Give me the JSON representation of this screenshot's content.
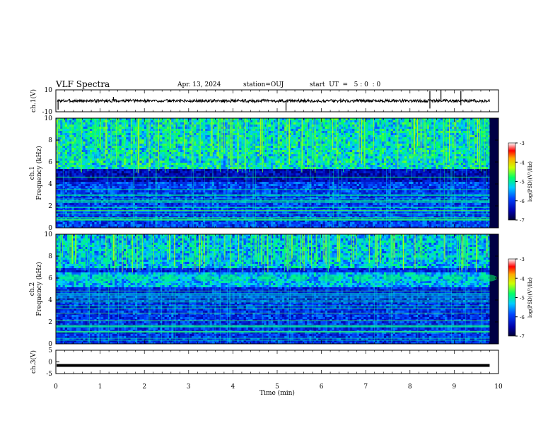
{
  "header": {
    "title": "VLF Spectra",
    "date": "Apr. 13, 2024",
    "station": "station=OUJ",
    "start_ut": "start  UT  =   5 : 0  : 0"
  },
  "colors": {
    "background": "#ffffff",
    "trace": "#000000",
    "colormap": [
      "#000033",
      "#0000aa",
      "#0044ff",
      "#00ccff",
      "#00ff66",
      "#ccff00",
      "#ffaa00",
      "#ff0000",
      "#ffffff"
    ]
  },
  "chart_data": [
    {
      "id": "ch1_waveform",
      "type": "line",
      "ylabel": "ch.1(V)",
      "ylim": [
        -10,
        10
      ],
      "yticks": [
        "10",
        "-10"
      ],
      "x_range_min": [
        0,
        10
      ],
      "baseline": 0,
      "spikes": [
        {
          "x": 0.05,
          "y": -8
        },
        {
          "x": 1.3,
          "y": 3.5
        },
        {
          "x": 5.2,
          "y": -9
        },
        {
          "x": 8.45,
          "y": -7
        },
        {
          "x": 8.45,
          "y": 9
        },
        {
          "x": 8.7,
          "y": 10
        },
        {
          "x": 9.15,
          "y": 9
        },
        {
          "x": 9.15,
          "y": -4
        }
      ],
      "trace_end_min": 9.8
    },
    {
      "id": "ch1_spectrogram",
      "type": "heatmap",
      "ylabel": "ch.1\nFrequency (kHz)",
      "ylabel_line1": "ch.1",
      "ylabel_line2": "Frequency (kHz)",
      "ylim": [
        0,
        10
      ],
      "yticks": [
        "0",
        "2",
        "4",
        "6",
        "8",
        "10"
      ],
      "colorbar_label": "log(PSD)(V²/Hz)",
      "colorbar_ticks": [
        "-3",
        "-4",
        "-5",
        "-6",
        "-7"
      ],
      "colorbar_range": [
        -7,
        -3
      ],
      "quiet_band_khz": [
        4.2,
        5.5
      ],
      "noisy_band_khz": [
        5.5,
        10
      ],
      "seed": 7
    },
    {
      "id": "ch2_spectrogram",
      "type": "heatmap",
      "ylabel": "ch.2\nFrequency (kHz)",
      "ylabel_line1": "ch.2",
      "ylabel_line2": "Frequency (kHz)",
      "ylim": [
        0,
        10
      ],
      "yticks": [
        "0",
        "2",
        "4",
        "6",
        "8",
        "10"
      ],
      "colorbar_label": "log(PSD)(V²/Hz)",
      "colorbar_ticks": [
        "-3",
        "-4",
        "-5",
        "-6",
        "-7"
      ],
      "colorbar_range": [
        -7,
        -3
      ],
      "band_khz": 6.0,
      "seed": 19
    },
    {
      "id": "ch3_waveform",
      "type": "line",
      "ylabel": "ch.3(V)",
      "ylim": [
        -5,
        5
      ],
      "yticks": [
        "5",
        "0",
        "-5"
      ],
      "baseline": -1.5,
      "trace_end_min": 9.8
    }
  ],
  "xaxis": {
    "label": "Time  (min)",
    "ticks": [
      "0",
      "1",
      "2",
      "3",
      "4",
      "5",
      "6",
      "7",
      "8",
      "9",
      "10"
    ],
    "range": [
      0,
      10
    ]
  }
}
